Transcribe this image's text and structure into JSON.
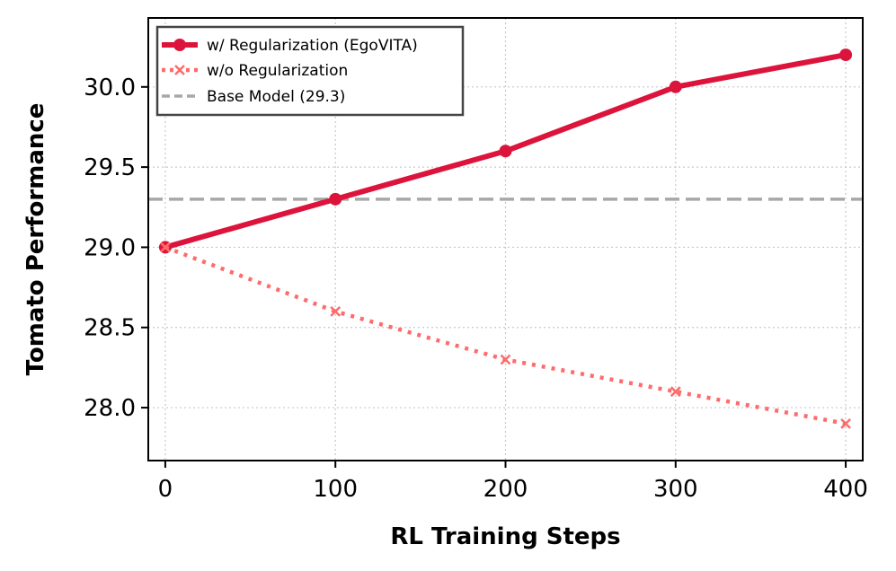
{
  "chart_data": {
    "type": "line",
    "xlabel": "RL Training Steps",
    "ylabel": "Tomato Performance",
    "x": [
      0,
      100,
      200,
      300,
      400
    ],
    "xlim": [
      -10,
      410
    ],
    "ylim": [
      27.67,
      30.43
    ],
    "xticks": [
      0,
      100,
      200,
      300,
      400
    ],
    "xtick_labels": [
      "0",
      "100",
      "200",
      "300",
      "400"
    ],
    "yticks": [
      28.0,
      28.5,
      29.0,
      29.5,
      30.0
    ],
    "ytick_labels": [
      "28.0",
      "28.5",
      "29.0",
      "29.5",
      "30.0"
    ],
    "grid": true,
    "legend_position": "top-left",
    "series": [
      {
        "name": "w/ Regularization (EgoVITA)",
        "values": [
          29.0,
          29.3,
          29.6,
          30.0,
          30.2
        ],
        "color": "#dc143c",
        "style": "solid",
        "marker": "circle"
      },
      {
        "name": "w/o Regularization",
        "values": [
          29.0,
          28.6,
          28.3,
          28.1,
          27.9
        ],
        "color": "#ff6b6b",
        "style": "dotted",
        "marker": "x"
      }
    ],
    "reference_lines": [
      {
        "name": "Base Model (29.3)",
        "value": 29.3,
        "color": "#a8a8a8",
        "style": "dashed"
      }
    ]
  }
}
